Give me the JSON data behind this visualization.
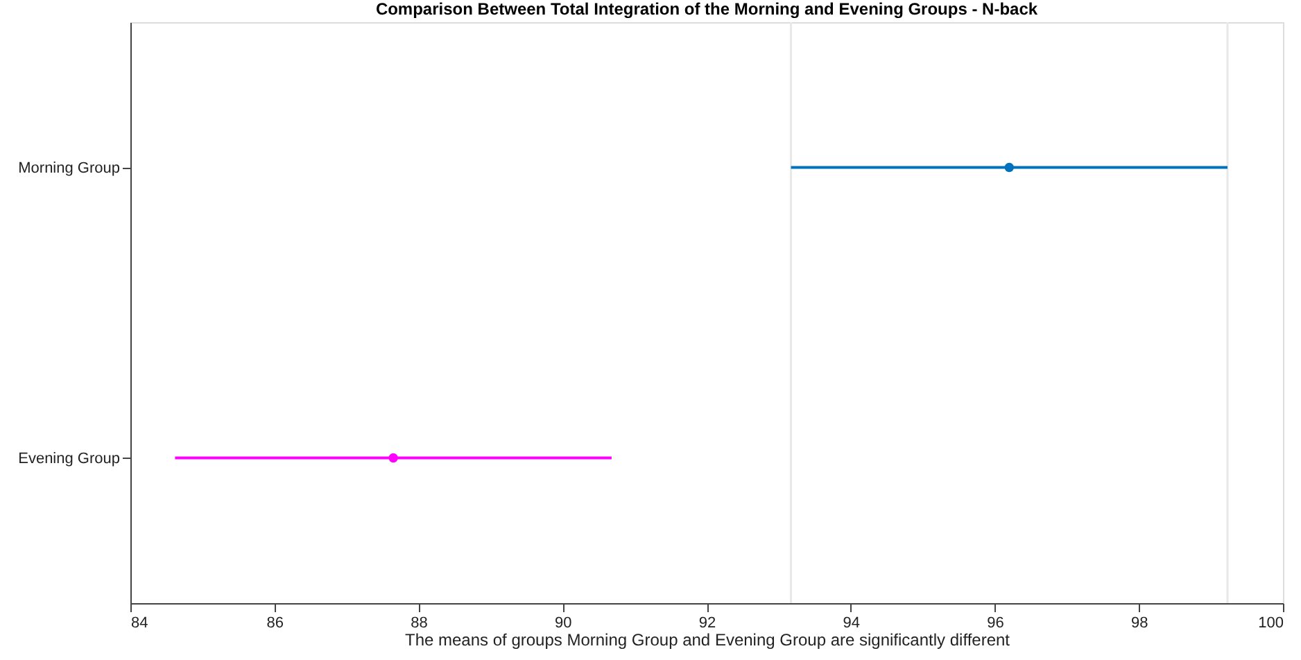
{
  "chart_data": {
    "type": "scatter",
    "orientation": "horizontal",
    "title": "Comparison Between Total Integration of the Morning and Evening Groups - N-back",
    "xlabel": "The means of groups Morning Group and Evening Group are significantly different",
    "categories": [
      "Morning Group",
      "Evening Group"
    ],
    "values": [
      96.2,
      87.65
    ],
    "errors": [
      3.03,
      3.03
    ],
    "colors": [
      "#0072bd",
      "#ff00ff"
    ],
    "marker": "circle",
    "xlim": [
      84,
      100
    ],
    "xticks": [
      84,
      86,
      88,
      90,
      92,
      94,
      96,
      98,
      100
    ],
    "ref_lines": [
      {
        "axis": "x",
        "value": 93.17,
        "color": "#e8e8e8"
      },
      {
        "axis": "x",
        "value": 99.23,
        "color": "#e8e8e8"
      }
    ],
    "grid": false
  }
}
